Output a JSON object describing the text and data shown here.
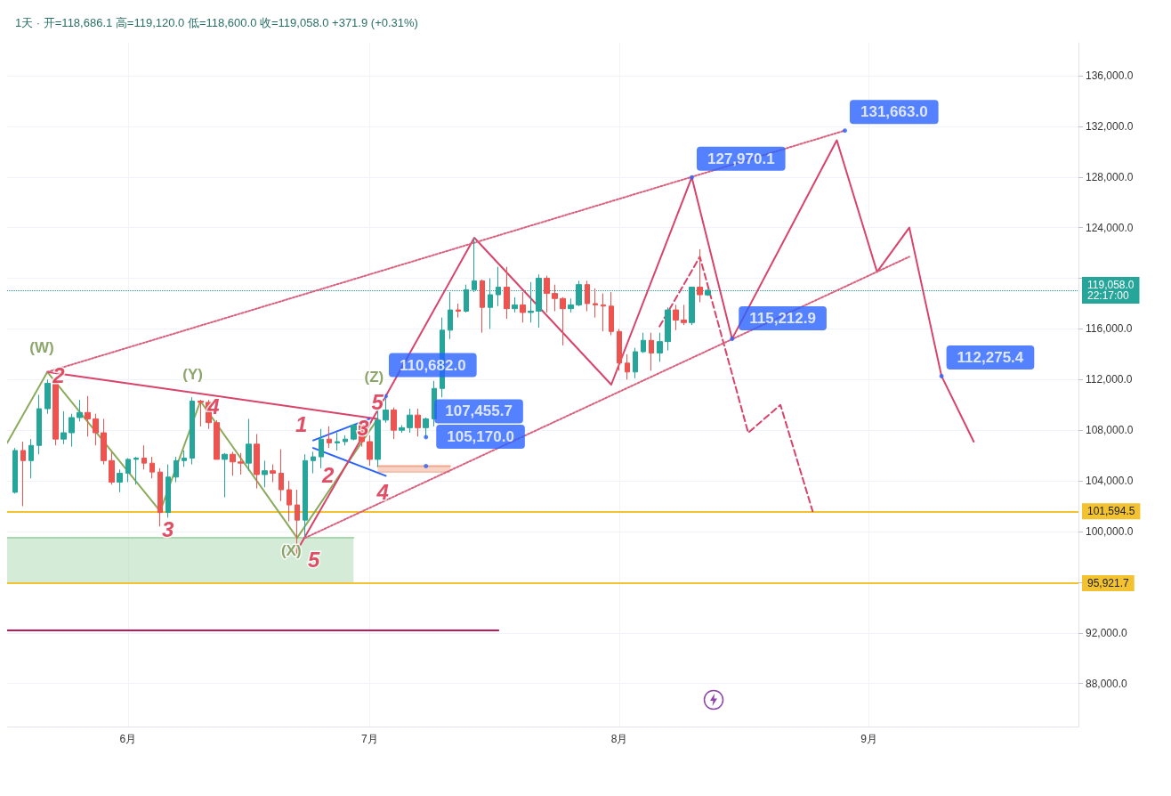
{
  "chart_data": {
    "type": "candlestick",
    "title": "1天 · 开=118,686.1 高=119,120.0 低=118,600.0 收=119,058.0 +371.9 (+0.31%)",
    "xlim": [
      "--05-17",
      "--09-27"
    ],
    "xticks": [
      {
        "value": "--06-01",
        "label": "6月"
      },
      {
        "value": "--07-01",
        "label": "7月"
      },
      {
        "value": "--08-01",
        "label": "8月"
      },
      {
        "value": "--09-01",
        "label": "9月"
      }
    ],
    "ylim": [
      84600,
      138600
    ],
    "yticks": [
      {
        "value": 88000,
        "label": "88,000.0"
      },
      {
        "value": 92000,
        "label": "92,000.0"
      },
      {
        "value": 96000,
        "label": null
      },
      {
        "value": 100000,
        "label": "100,000.0"
      },
      {
        "value": 104000,
        "label": "104,000.0"
      },
      {
        "value": 108000,
        "label": "108,000.0"
      },
      {
        "value": 112000,
        "label": "112,000.0"
      },
      {
        "value": 116000,
        "label": "116,000.0"
      },
      {
        "value": 120000,
        "label": null
      },
      {
        "value": 124000,
        "label": "124,000.0"
      },
      {
        "value": 128000,
        "label": "128,000.0"
      },
      {
        "value": 132000,
        "label": "132,000.0"
      },
      {
        "value": 136000,
        "label": "136,000.0"
      }
    ],
    "grid": true,
    "series": [
      {
        "type": "line",
        "color": "#a9d8b0",
        "line_style": "solid",
        "x": [
          "--05-17",
          "--06-29"
        ],
        "lower": [
          95921.7,
          95921.7
        ],
        "upper": [
          99500,
          99500
        ],
        "values": [
          99500,
          99500
        ]
      },
      {
        "type": "line",
        "color": "#f0a88c",
        "line_style": "solid",
        "x": [
          "--07-02",
          "--07-11"
        ],
        "lower": [
          104700,
          104700
        ],
        "upper": [
          105170,
          105170
        ],
        "values": [
          105170,
          105170
        ]
      },
      {
        "x": [
          "--05-18",
          "--05-19",
          "--05-20",
          "--05-21",
          "--05-22",
          "--05-23",
          "--05-24",
          "--05-25",
          "--05-26",
          "--05-27",
          "--05-28",
          "--05-29",
          "--05-30",
          "--05-31",
          "--06-01",
          "--06-02",
          "--06-03",
          "--06-04",
          "--06-05",
          "--06-06",
          "--06-07",
          "--06-08",
          "--06-09",
          "--06-10",
          "--06-11",
          "--06-12",
          "--06-13",
          "--06-14",
          "--06-15",
          "--06-16",
          "--06-17",
          "--06-18",
          "--06-19",
          "--06-20",
          "--06-21",
          "--06-22",
          "--06-23",
          "--06-24",
          "--06-25",
          "--06-26",
          "--06-27",
          "--06-28",
          "--06-29",
          "--06-30",
          "--07-01",
          "--07-02",
          "--07-03",
          "--07-04",
          "--07-05",
          "--07-06",
          "--07-07",
          "--07-08",
          "--07-09",
          "--07-10",
          "--07-11",
          "--07-12",
          "--07-13",
          "--07-14",
          "--07-15",
          "--07-16",
          "--07-17",
          "--07-18",
          "--07-19",
          "--07-20",
          "--07-21",
          "--07-22",
          "--07-23",
          "--07-24",
          "--07-25",
          "--07-26",
          "--07-27",
          "--07-28",
          "--07-29",
          "--07-30",
          "--07-31",
          "--08-01",
          "--08-02",
          "--08-03",
          "--08-04",
          "--08-05",
          "--08-06",
          "--08-07",
          "--08-08",
          "--08-09",
          "--08-10",
          "--08-11",
          "--08-12"
        ],
        "ohlc": [
          [
            103100,
            106600,
            103000,
            106400
          ],
          [
            106400,
            107100,
            102000,
            105600
          ],
          [
            105600,
            107300,
            104200,
            106800
          ],
          [
            106800,
            110800,
            106100,
            109700
          ],
          [
            109700,
            112000,
            109300,
            111700
          ],
          [
            111700,
            111900,
            106800,
            107300
          ],
          [
            107300,
            109500,
            106900,
            107800
          ],
          [
            107800,
            109300,
            106700,
            109000
          ],
          [
            109000,
            110400,
            108700,
            109400
          ],
          [
            109400,
            110700,
            107500,
            108900
          ],
          [
            108900,
            109300,
            106800,
            107800
          ],
          [
            107800,
            108900,
            105300,
            105600
          ],
          [
            105600,
            106300,
            103700,
            103900
          ],
          [
            103900,
            104900,
            103100,
            104600
          ],
          [
            104600,
            105800,
            103900,
            105700
          ],
          [
            105700,
            105900,
            103700,
            105800
          ],
          [
            105800,
            106800,
            104900,
            105400
          ],
          [
            105400,
            105900,
            104200,
            104700
          ],
          [
            104700,
            105000,
            100400,
            101500
          ],
          [
            101500,
            105300,
            101100,
            104300
          ],
          [
            104300,
            105900,
            103900,
            105600
          ],
          [
            105600,
            106400,
            105100,
            105800
          ],
          [
            105800,
            110600,
            105300,
            110300
          ],
          [
            110300,
            110400,
            108300,
            110200
          ],
          [
            110200,
            110400,
            108100,
            108600
          ],
          [
            108600,
            108800,
            105700,
            105700
          ],
          [
            105700,
            106200,
            102700,
            106100
          ],
          [
            106100,
            106300,
            104400,
            105500
          ],
          [
            105500,
            106200,
            104500,
            105400
          ],
          [
            105400,
            108900,
            104800,
            106900
          ],
          [
            106900,
            107700,
            103400,
            104500
          ],
          [
            104500,
            105600,
            103500,
            104800
          ],
          [
            104800,
            105300,
            103900,
            104600
          ],
          [
            104600,
            106500,
            102400,
            103300
          ],
          [
            103300,
            104000,
            100800,
            102100
          ],
          [
            102100,
            103300,
            98200,
            100900
          ],
          [
            100900,
            106100,
            99600,
            105600
          ],
          [
            105600,
            106300,
            104600,
            105900
          ],
          [
            105900,
            108100,
            105000,
            107300
          ],
          [
            107300,
            108300,
            106600,
            107000
          ],
          [
            107000,
            107800,
            106400,
            107100
          ],
          [
            107100,
            107600,
            106800,
            107300
          ],
          [
            107300,
            108500,
            107200,
            108400
          ],
          [
            108400,
            108800,
            106700,
            107100
          ],
          [
            107100,
            107600,
            105200,
            105700
          ],
          [
            105700,
            109700,
            105100,
            108800
          ],
          [
            108800,
            110500,
            108600,
            109600
          ],
          [
            109600,
            109800,
            107300,
            108000
          ],
          [
            108000,
            108400,
            107800,
            108200
          ],
          [
            108200,
            109700,
            107800,
            109200
          ],
          [
            109200,
            109700,
            107500,
            108200
          ],
          [
            108200,
            109000,
            107400,
            108900
          ],
          [
            108900,
            111900,
            108300,
            111300
          ],
          [
            111300,
            116900,
            110600,
            115900
          ],
          [
            115900,
            118900,
            115200,
            117500
          ],
          [
            117500,
            118000,
            116900,
            117400
          ],
          [
            117400,
            119500,
            117300,
            119100
          ],
          [
            119100,
            123200,
            118900,
            119800
          ],
          [
            119800,
            119900,
            115700,
            117700
          ],
          [
            117700,
            120000,
            116000,
            118700
          ],
          [
            118700,
            120900,
            117800,
            119300
          ],
          [
            119300,
            120900,
            116800,
            117600
          ],
          [
            117600,
            118500,
            117300,
            117900
          ],
          [
            117900,
            118900,
            116500,
            117300
          ],
          [
            117300,
            119700,
            116500,
            117400
          ],
          [
            117400,
            120300,
            116100,
            120000
          ],
          [
            120000,
            120200,
            117300,
            118800
          ],
          [
            118800,
            119500,
            117400,
            118400
          ],
          [
            118400,
            118500,
            114700,
            117600
          ],
          [
            117600,
            118400,
            117300,
            117900
          ],
          [
            117900,
            119800,
            117800,
            119500
          ],
          [
            119500,
            119800,
            117400,
            118000
          ],
          [
            118000,
            119200,
            116900,
            117900
          ],
          [
            117900,
            118800,
            115800,
            117800
          ],
          [
            117800,
            118900,
            115500,
            115800
          ],
          [
            115800,
            116000,
            112700,
            113300
          ],
          [
            113300,
            114000,
            112000,
            112600
          ],
          [
            112600,
            114500,
            112100,
            114200
          ],
          [
            114200,
            115700,
            114100,
            115100
          ],
          [
            115100,
            115700,
            112700,
            114100
          ],
          [
            114100,
            115700,
            113400,
            115000
          ],
          [
            115000,
            117700,
            114300,
            117500
          ],
          [
            117500,
            117900,
            115900,
            116700
          ],
          [
            116700,
            117900,
            116300,
            116500
          ],
          [
            116500,
            119300,
            116300,
            119300
          ],
          [
            119300,
            122300,
            118100,
            118700
          ],
          [
            118686.1,
            119120.0,
            118600.0,
            119058.0
          ]
        ]
      },
      {
        "type": "line",
        "color": "#8bab5c",
        "line_style": "solid",
        "x": [
          "--05-17",
          "--05-22",
          "--06-05",
          "--06-10",
          "--06-22",
          "--07-02"
        ],
        "values": [
          107000,
          112600,
          101600,
          110300,
          99500,
          108900
        ]
      },
      {
        "type": "line",
        "color": "#d9436a",
        "line_style": "solid",
        "x": [
          "--05-22",
          "--07-02"
        ],
        "values": [
          112600,
          108900
        ]
      },
      {
        "type": "line",
        "color": "#2962ff",
        "line_style": "solid",
        "x": [
          "--06-24",
          "--07-01"
        ],
        "values": [
          107200,
          108900
        ]
      },
      {
        "type": "line",
        "color": "#2962ff",
        "line_style": "solid",
        "x": [
          "--06-24",
          "--07-03"
        ],
        "values": [
          106600,
          104400
        ]
      },
      {
        "type": "line",
        "color": "#d9436a",
        "line_style": "solid",
        "x": [
          "--06-22",
          "--07-03",
          "--07-14",
          "--07-31",
          "--08-10",
          "--08-15",
          "--08-28",
          "--09-02",
          "--09-06",
          "--09-10",
          "--09-14"
        ],
        "values": [
          98500,
          110682.0,
          123200,
          111600,
          127970.1,
          115212.9,
          130900,
          120500,
          124000,
          112275.4,
          107100
        ]
      },
      {
        "type": "line",
        "color": "#d9436a",
        "line_style": "dashed",
        "x": [
          "--08-06",
          "--08-11",
          "--08-17",
          "--08-21",
          "--08-25"
        ],
        "values": [
          116200,
          121700,
          107800,
          110000,
          101600
        ]
      },
      {
        "type": "line",
        "color": "#d9607f",
        "line_style": "dotted",
        "x": [
          "--05-22",
          "--08-29"
        ],
        "values": [
          112600,
          131663.0
        ]
      },
      {
        "type": "line",
        "color": "#d9607f",
        "line_style": "dotted",
        "x": [
          "--06-23",
          "--09-06"
        ],
        "values": [
          99500,
          121700
        ]
      },
      {
        "type": "line",
        "color": "#c2185b",
        "line_style": "solid",
        "x": [
          "--05-17",
          "--07-17"
        ],
        "values": [
          92200,
          92200
        ]
      }
    ],
    "ref_lines": [
      {
        "axis": "y",
        "value": 101594.5,
        "label": "101,594.5",
        "color": "#f2c230",
        "line_style": "solid"
      },
      {
        "axis": "y",
        "value": 95921.7,
        "label": "95,921.7",
        "color": "#f2c230",
        "line_style": "solid"
      },
      {
        "axis": "y",
        "value": 119058.0,
        "label": "119,058.0\n22:17:00",
        "color": "#26a69a",
        "line_style": "dotted"
      }
    ],
    "annotations": [
      {
        "text": "131,663.0",
        "x": "--08-29",
        "y": 131663.0
      },
      {
        "text": "127,970.1",
        "x": "--08-10",
        "y": 127970.1
      },
      {
        "text": "115,212.9",
        "x": "--08-15",
        "y": 115212.9
      },
      {
        "text": "112,275.4",
        "x": "--09-10",
        "y": 112275.4
      },
      {
        "text": "110,682.0",
        "x": "--07-03",
        "y": 110682.0
      },
      {
        "text": "107,455.7",
        "x": "--07-08",
        "y": 107455.7
      },
      {
        "text": "105,170.0",
        "x": "--07-08",
        "y": 105170.0
      },
      {
        "text": "(W)",
        "x": "--05-22",
        "y": 112600
      },
      {
        "text": "(Y)",
        "x": "--06-10",
        "y": 110300
      },
      {
        "text": "(X)",
        "x": "--06-22",
        "y": 99500
      },
      {
        "text": "(Z)",
        "x": "--07-03",
        "y": 110682.0
      },
      {
        "text": "2",
        "x": "--05-22",
        "y": 112600
      },
      {
        "text": "4",
        "x": "--06-10",
        "y": 110300
      },
      {
        "text": "3",
        "x": "--06-05",
        "y": 101600
      },
      {
        "text": "5",
        "x": "--06-22",
        "y": 98500
      },
      {
        "text": "1",
        "x": "--06-24",
        "y": 107200
      },
      {
        "text": "2",
        "x": "--06-24",
        "y": 106600
      },
      {
        "text": "3",
        "x": "--07-01",
        "y": 108900
      },
      {
        "text": "4",
        "x": "--07-03",
        "y": 104400
      },
      {
        "text": "5",
        "x": "--07-03",
        "y": 110682.0
      }
    ]
  }
}
